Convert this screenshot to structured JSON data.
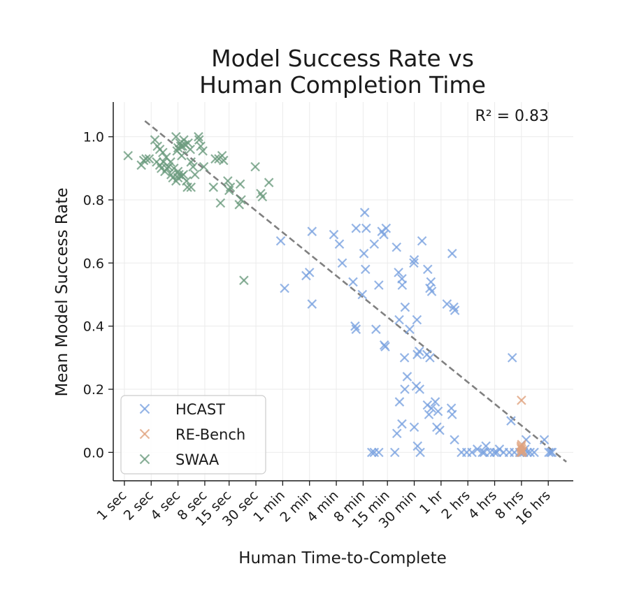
{
  "chart_data": {
    "type": "scatter",
    "title_line1": "Model Success Rate vs",
    "title_line2": "Human Completion Time",
    "xlabel": "Human Time-to-Complete",
    "ylabel": "Mean Model Success Rate",
    "x_scale": "log2",
    "x_unit": "seconds",
    "xlim": [
      0.75,
      110000
    ],
    "ylim": [
      -0.09,
      1.11
    ],
    "grid": true,
    "legend_position": "lower-left",
    "annotation": "R² = 0.83",
    "x_ticks": [
      {
        "value": 1,
        "label": "1 sec"
      },
      {
        "value": 2,
        "label": "2 sec"
      },
      {
        "value": 4,
        "label": "4 sec"
      },
      {
        "value": 8,
        "label": "8 sec"
      },
      {
        "value": 15,
        "label": "15 sec"
      },
      {
        "value": 30,
        "label": "30 sec"
      },
      {
        "value": 60,
        "label": "1 min"
      },
      {
        "value": 120,
        "label": "2 min"
      },
      {
        "value": 240,
        "label": "4 min"
      },
      {
        "value": 480,
        "label": "8 min"
      },
      {
        "value": 900,
        "label": "15 min"
      },
      {
        "value": 1800,
        "label": "30 min"
      },
      {
        "value": 3600,
        "label": "1 hr"
      },
      {
        "value": 7200,
        "label": "2 hrs"
      },
      {
        "value": 14400,
        "label": "4 hrs"
      },
      {
        "value": 28800,
        "label": "8 hrs"
      },
      {
        "value": 57600,
        "label": "16 hrs"
      }
    ],
    "y_ticks": [
      {
        "value": 0.0,
        "label": "0.0"
      },
      {
        "value": 0.2,
        "label": "0.2"
      },
      {
        "value": 0.4,
        "label": "0.4"
      },
      {
        "value": 0.6,
        "label": "0.6"
      },
      {
        "value": 0.8,
        "label": "0.8"
      },
      {
        "value": 1.0,
        "label": "1.0"
      }
    ],
    "trend_line": {
      "x": [
        1.7,
        92000
      ],
      "y": [
        1.05,
        -0.03
      ],
      "color": "#808080",
      "style": "dashed"
    },
    "series": [
      {
        "name": "HCAST",
        "color": "#7ba3e0",
        "marker": "x",
        "points": [
          [
            57,
            0.67
          ],
          [
            63,
            0.52
          ],
          [
            120,
            0.57
          ],
          [
            128,
            0.7
          ],
          [
            110,
            0.56
          ],
          [
            128,
            0.47
          ],
          [
            225,
            0.69
          ],
          [
            260,
            0.66
          ],
          [
            280,
            0.6
          ],
          [
            370,
            0.54
          ],
          [
            400,
            0.71
          ],
          [
            400,
            0.39
          ],
          [
            390,
            0.4
          ],
          [
            500,
            0.76
          ],
          [
            520,
            0.71
          ],
          [
            490,
            0.63
          ],
          [
            510,
            0.58
          ],
          [
            470,
            0.5
          ],
          [
            720,
            0.53
          ],
          [
            780,
            0.7
          ],
          [
            820,
            0.69
          ],
          [
            870,
            0.71
          ],
          [
            640,
            0.66
          ],
          [
            670,
            0.39
          ],
          [
            830,
            0.34
          ],
          [
            850,
            0.335
          ],
          [
            600,
            0.0
          ],
          [
            640,
            0.0
          ],
          [
            720,
            0.0
          ],
          [
            1140,
            0.65
          ],
          [
            1200,
            0.57
          ],
          [
            1310,
            0.55
          ],
          [
            1320,
            0.53
          ],
          [
            1420,
            0.46
          ],
          [
            1400,
            0.3
          ],
          [
            1220,
            0.42
          ],
          [
            1600,
            0.39
          ],
          [
            1800,
            0.61
          ],
          [
            1780,
            0.6
          ],
          [
            1930,
            0.42
          ],
          [
            1500,
            0.24
          ],
          [
            1410,
            0.2
          ],
          [
            1230,
            0.16
          ],
          [
            1310,
            0.09
          ],
          [
            1150,
            0.06
          ],
          [
            1950,
            0.31
          ],
          [
            2050,
            0.32
          ],
          [
            1900,
            0.21
          ],
          [
            2070,
            0.2
          ],
          [
            1800,
            0.08
          ],
          [
            1960,
            0.02
          ],
          [
            2100,
            0.0
          ],
          [
            1090,
            0.0
          ],
          [
            2200,
            0.67
          ],
          [
            2550,
            0.58
          ],
          [
            2700,
            0.52
          ],
          [
            2830,
            0.51
          ],
          [
            2770,
            0.54
          ],
          [
            2500,
            0.31
          ],
          [
            2700,
            0.3
          ],
          [
            2530,
            0.15
          ],
          [
            2630,
            0.12
          ],
          [
            2810,
            0.14
          ],
          [
            3100,
            0.16
          ],
          [
            3330,
            0.13
          ],
          [
            3230,
            0.08
          ],
          [
            3480,
            0.07
          ],
          [
            4200,
            0.47
          ],
          [
            4800,
            0.63
          ],
          [
            5000,
            0.46
          ],
          [
            5150,
            0.45
          ],
          [
            4700,
            0.14
          ],
          [
            4800,
            0.12
          ],
          [
            5100,
            0.04
          ],
          [
            6100,
            0.0
          ],
          [
            7000,
            0.0
          ],
          [
            8000,
            0.0
          ],
          [
            9200,
            0.01
          ],
          [
            10500,
            0.0
          ],
          [
            11000,
            0.0
          ],
          [
            11500,
            0.02
          ],
          [
            12800,
            0.0
          ],
          [
            14300,
            0.0
          ],
          [
            15200,
            0.0
          ],
          [
            16300,
            0.01
          ],
          [
            18100,
            0.0
          ],
          [
            21000,
            0.0
          ],
          [
            24000,
            0.0
          ],
          [
            22000,
            0.1
          ],
          [
            22700,
            0.3
          ],
          [
            27500,
            0.0
          ],
          [
            29000,
            0.0
          ],
          [
            30500,
            0.0
          ],
          [
            31500,
            0.01
          ],
          [
            32500,
            0.04
          ],
          [
            33500,
            0.0
          ],
          [
            36000,
            0.0
          ],
          [
            40000,
            0.0
          ],
          [
            52000,
            0.04
          ],
          [
            58500,
            0.0
          ],
          [
            61500,
            0.0
          ],
          [
            63500,
            0.0
          ]
        ]
      },
      {
        "name": "RE-Bench",
        "color": "#e0a27e",
        "marker": "x",
        "points": [
          [
            28800,
            0.165
          ],
          [
            28600,
            0.02
          ],
          [
            28900,
            0.01
          ],
          [
            29300,
            0.0
          ],
          [
            28200,
            0.0
          ],
          [
            29700,
            0.005
          ],
          [
            28500,
            0.015
          ],
          [
            29000,
            0.025
          ]
        ]
      },
      {
        "name": "SWAA",
        "color": "#6b9b7e",
        "marker": "x",
        "points": [
          [
            1.1,
            0.94
          ],
          [
            1.55,
            0.91
          ],
          [
            1.65,
            0.925
          ],
          [
            1.75,
            0.93
          ],
          [
            1.9,
            0.93
          ],
          [
            2.2,
            0.99
          ],
          [
            2.35,
            0.97
          ],
          [
            2.5,
            0.96
          ],
          [
            2.7,
            0.95
          ],
          [
            2.3,
            0.92
          ],
          [
            2.5,
            0.91
          ],
          [
            2.75,
            0.92
          ],
          [
            2.85,
            0.89
          ],
          [
            3.0,
            0.9
          ],
          [
            3.15,
            0.905
          ],
          [
            3.35,
            0.88
          ],
          [
            3.5,
            0.87
          ],
          [
            2.6,
            0.9
          ],
          [
            2.95,
            0.935
          ],
          [
            3.3,
            0.92
          ],
          [
            3.8,
            1.0
          ],
          [
            4.2,
            0.98
          ],
          [
            4.5,
            0.97
          ],
          [
            4.8,
            0.975
          ],
          [
            4.3,
            0.97
          ],
          [
            4.65,
            0.99
          ],
          [
            5.2,
            0.98
          ],
          [
            5.5,
            0.96
          ],
          [
            4.0,
            0.965
          ],
          [
            3.9,
            0.955
          ],
          [
            4.4,
            0.94
          ],
          [
            3.6,
            0.9
          ],
          [
            4.0,
            0.89
          ],
          [
            4.4,
            0.875
          ],
          [
            3.8,
            0.86
          ],
          [
            4.1,
            0.88
          ],
          [
            4.6,
            0.88
          ],
          [
            5.0,
            0.86
          ],
          [
            5.1,
            0.84
          ],
          [
            4.0,
            0.87
          ],
          [
            5.6,
            0.92
          ],
          [
            5.9,
            0.905
          ],
          [
            6.2,
            0.88
          ],
          [
            5.6,
            0.84
          ],
          [
            6.8,
            1.0
          ],
          [
            7.2,
            0.97
          ],
          [
            7.6,
            0.955
          ],
          [
            7.8,
            0.905
          ],
          [
            6.9,
            0.99
          ],
          [
            10.0,
            0.84
          ],
          [
            10.5,
            0.93
          ],
          [
            11.5,
            0.93
          ],
          [
            12.5,
            0.94
          ],
          [
            13.0,
            0.925
          ],
          [
            12.0,
            0.79
          ],
          [
            14.5,
            0.86
          ],
          [
            15.5,
            0.84
          ],
          [
            15.0,
            0.83
          ],
          [
            20.0,
            0.85
          ],
          [
            20.5,
            0.8
          ],
          [
            19.5,
            0.785
          ],
          [
            22.0,
            0.545
          ],
          [
            29.5,
            0.905
          ],
          [
            34.0,
            0.82
          ],
          [
            35.5,
            0.81
          ],
          [
            42.0,
            0.855
          ]
        ]
      }
    ]
  }
}
